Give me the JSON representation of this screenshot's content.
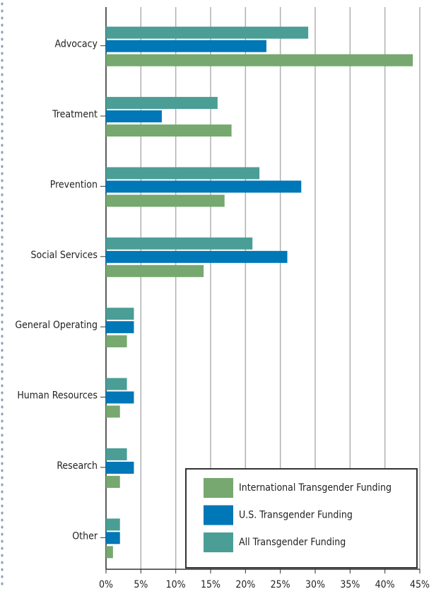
{
  "chart_data": {
    "type": "hbar",
    "categories": [
      "Advocacy",
      "Treatment",
      "Prevention",
      "Social Services",
      "General Operating",
      "Human Resources",
      "Research",
      "Other"
    ],
    "series": [
      {
        "name": "All Transgender Funding",
        "color": "#4a9e96",
        "values": [
          29,
          16,
          22,
          21,
          4,
          3,
          3,
          2
        ]
      },
      {
        "name": "U.S. Transgender Funding",
        "color": "#0077b6",
        "values": [
          23,
          8,
          28,
          26,
          4,
          4,
          4,
          2
        ]
      },
      {
        "name": "International  Transgender Funding",
        "color": "#76a86f",
        "values": [
          44,
          18,
          17,
          14,
          3,
          2,
          2,
          1
        ]
      }
    ],
    "xlim": [
      0,
      45
    ],
    "xticks": [
      {
        "value": 0,
        "label": "0%"
      },
      {
        "value": 5,
        "label": "5%"
      },
      {
        "value": 10,
        "label": "10%"
      },
      {
        "value": 15,
        "label": "15%"
      },
      {
        "value": 20,
        "label": "20%"
      },
      {
        "value": 25,
        "label": "25%"
      },
      {
        "value": 30,
        "label": "30%"
      },
      {
        "value": 35,
        "label": "35%"
      },
      {
        "value": 40,
        "label": "40%"
      },
      {
        "value": 45,
        "label": "45%"
      }
    ],
    "grid": true,
    "legend": "lower right"
  }
}
